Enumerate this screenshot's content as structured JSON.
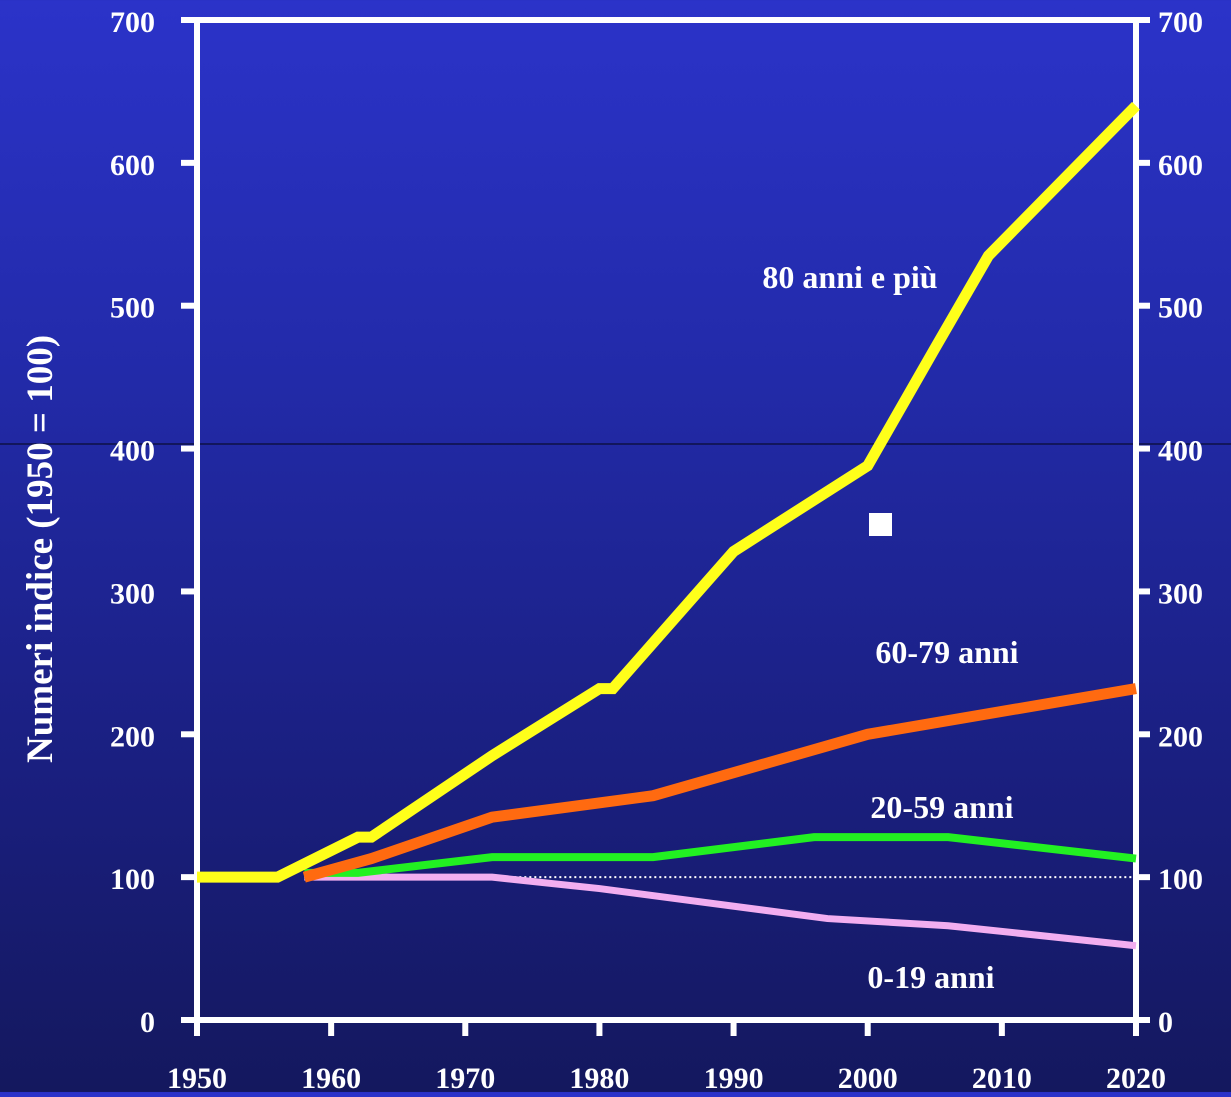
{
  "chart_data": {
    "type": "line",
    "title": "",
    "ylabel": "Numeri indice (1950 = 100)",
    "xlabel": "",
    "xlim": [
      1950,
      2020
    ],
    "ylim": [
      0,
      700
    ],
    "x_ticks": [
      "1950",
      "1960",
      "1970",
      "1980",
      "1990",
      "2000",
      "2010",
      "2020"
    ],
    "y_ticks": [
      "0",
      "100",
      "200",
      "300",
      "400",
      "500",
      "600",
      "700"
    ],
    "reference_line": 100,
    "grid": false,
    "series": [
      {
        "name": "80 anni e più",
        "color": "#ffff1a",
        "x": [
          1950,
          1956,
          1962,
          1963,
          1972,
          1980,
          1981,
          1990,
          2000,
          2005,
          2009,
          2020
        ],
        "y": [
          100,
          100,
          128,
          128,
          185,
          232,
          232,
          328,
          388,
          470,
          535,
          640
        ]
      },
      {
        "name": "60-79 anni",
        "color": "#ff6a10",
        "x": [
          1958,
          1963,
          1972,
          1984,
          2000,
          2020
        ],
        "y": [
          100,
          113,
          142,
          157,
          200,
          232
        ]
      },
      {
        "name": "20-59 anni",
        "color": "#22f022",
        "x": [
          1958,
          1962,
          1972,
          1984,
          1996,
          2006,
          2020
        ],
        "y": [
          103,
          103,
          114,
          114,
          128,
          128,
          113
        ]
      },
      {
        "name": "0-19 anni",
        "color": "#f2aef0",
        "x": [
          1958,
          1972,
          1980,
          1997,
          2006,
          2020
        ],
        "y": [
          100,
          100,
          92,
          71,
          66,
          52
        ]
      }
    ]
  }
}
